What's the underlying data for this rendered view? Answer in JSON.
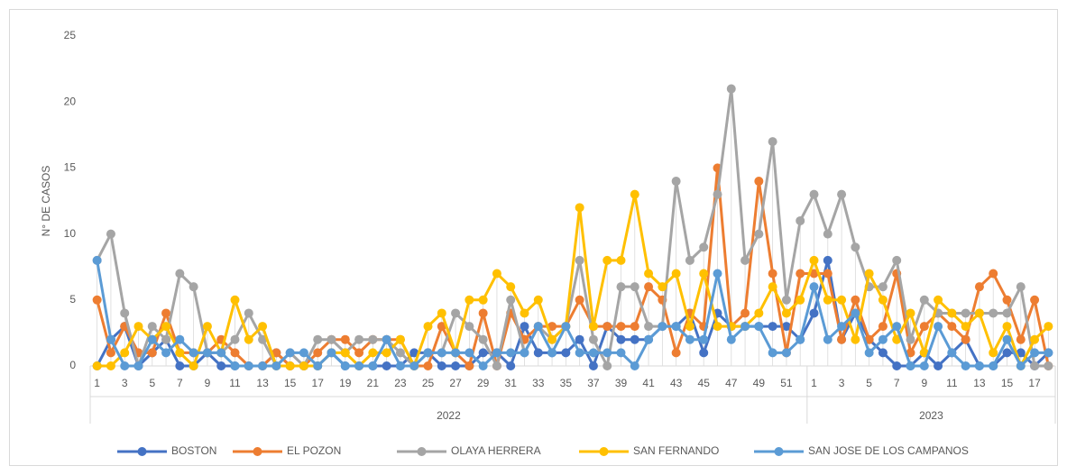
{
  "chart_data": {
    "type": "line",
    "y_label": "N° DE CASOS",
    "categories": [
      "1",
      null,
      "3",
      null,
      "5",
      null,
      "7",
      null,
      "9",
      null,
      "11",
      null,
      "13",
      null,
      "15",
      null,
      "17",
      null,
      "19",
      null,
      "21",
      null,
      "23",
      null,
      "25",
      null,
      "27",
      null,
      "29",
      null,
      "31",
      null,
      "33",
      null,
      "35",
      null,
      "37",
      null,
      "39",
      null,
      "41",
      null,
      "43",
      null,
      "45",
      null,
      "47",
      null,
      "49",
      null,
      "51",
      null,
      "1",
      null,
      "3",
      null,
      "5",
      null,
      "7",
      null,
      "9",
      null,
      "11",
      null,
      "13",
      null,
      "15",
      null,
      "17",
      null
    ],
    "groups": [
      {
        "name": "2022",
        "size": 52
      },
      {
        "name": "2023",
        "size": 18
      }
    ],
    "ylim": [
      0,
      25
    ],
    "yticks": [
      0,
      5,
      10,
      15,
      20,
      25
    ],
    "grid": false,
    "drop_lines": true,
    "legend": "bottom",
    "series": [
      {
        "name": "BOSTON",
        "color": "#4472c4",
        "values": [
          0,
          2,
          3,
          0,
          1,
          2,
          0,
          0,
          1,
          0,
          0,
          0,
          0,
          1,
          0,
          0,
          0,
          1,
          0,
          0,
          0,
          0,
          0,
          1,
          1,
          0,
          0,
          0,
          1,
          1,
          0,
          3,
          1,
          1,
          1,
          2,
          0,
          3,
          2,
          2,
          2,
          3,
          3,
          4,
          1,
          4,
          3,
          3,
          3,
          3,
          3,
          2,
          4,
          8,
          2,
          4,
          2,
          1,
          0,
          0,
          1,
          0,
          1,
          2,
          0,
          0,
          1,
          1,
          0,
          1
        ]
      },
      {
        "name": "EL POZON",
        "color": "#ed7d31",
        "values": [
          5,
          1,
          3,
          1,
          1,
          4,
          1,
          1,
          1,
          2,
          1,
          0,
          0,
          1,
          0,
          0,
          1,
          2,
          2,
          1,
          2,
          2,
          2,
          0,
          0,
          3,
          1,
          0,
          4,
          0,
          4,
          2,
          3,
          3,
          3,
          5,
          3,
          3,
          3,
          3,
          6,
          5,
          1,
          4,
          3,
          15,
          3,
          4,
          14,
          7,
          1,
          7,
          7,
          7,
          2,
          5,
          2,
          3,
          7,
          1,
          3,
          4,
          3,
          2,
          6,
          7,
          5,
          2,
          5,
          0
        ]
      },
      {
        "name": "OLAYA HERRERA",
        "color": "#a5a5a5",
        "values": [
          8,
          10,
          4,
          0,
          3,
          2,
          7,
          6,
          1,
          1,
          2,
          4,
          2,
          0,
          1,
          0,
          2,
          2,
          1,
          2,
          2,
          2,
          1,
          0,
          1,
          1,
          4,
          3,
          2,
          0,
          5,
          1,
          3,
          2,
          3,
          8,
          2,
          0,
          6,
          6,
          3,
          3,
          14,
          8,
          9,
          13,
          21,
          8,
          10,
          17,
          5,
          11,
          13,
          10,
          13,
          9,
          6,
          6,
          8,
          2,
          5,
          4,
          4,
          4,
          4,
          4,
          4,
          6,
          0,
          0
        ]
      },
      {
        "name": "SAN FERNANDO",
        "color": "#ffc000",
        "values": [
          0,
          0,
          1,
          3,
          2,
          3,
          1,
          0,
          3,
          1,
          5,
          2,
          3,
          0,
          0,
          0,
          0,
          1,
          1,
          0,
          1,
          1,
          2,
          0,
          3,
          4,
          1,
          5,
          5,
          7,
          6,
          4,
          5,
          2,
          3,
          12,
          3,
          8,
          8,
          13,
          7,
          6,
          7,
          3,
          7,
          3,
          3,
          3,
          4,
          6,
          4,
          5,
          8,
          5,
          5,
          2,
          7,
          5,
          2,
          4,
          1,
          5,
          4,
          3,
          4,
          1,
          3,
          0,
          2,
          3
        ]
      },
      {
        "name": "SAN JOSE DE LOS CAMPANOS",
        "color": "#5b9bd5",
        "values": [
          8,
          2,
          0,
          0,
          2,
          1,
          2,
          1,
          1,
          1,
          0,
          0,
          0,
          0,
          1,
          1,
          0,
          1,
          0,
          0,
          0,
          2,
          0,
          0,
          1,
          1,
          1,
          1,
          0,
          1,
          1,
          1,
          3,
          1,
          3,
          1,
          1,
          1,
          1,
          0,
          2,
          3,
          3,
          2,
          2,
          7,
          2,
          3,
          3,
          1,
          1,
          2,
          6,
          2,
          3,
          4,
          1,
          2,
          3,
          0,
          0,
          3,
          1,
          0,
          0,
          0,
          2,
          0,
          1,
          1
        ]
      }
    ]
  }
}
